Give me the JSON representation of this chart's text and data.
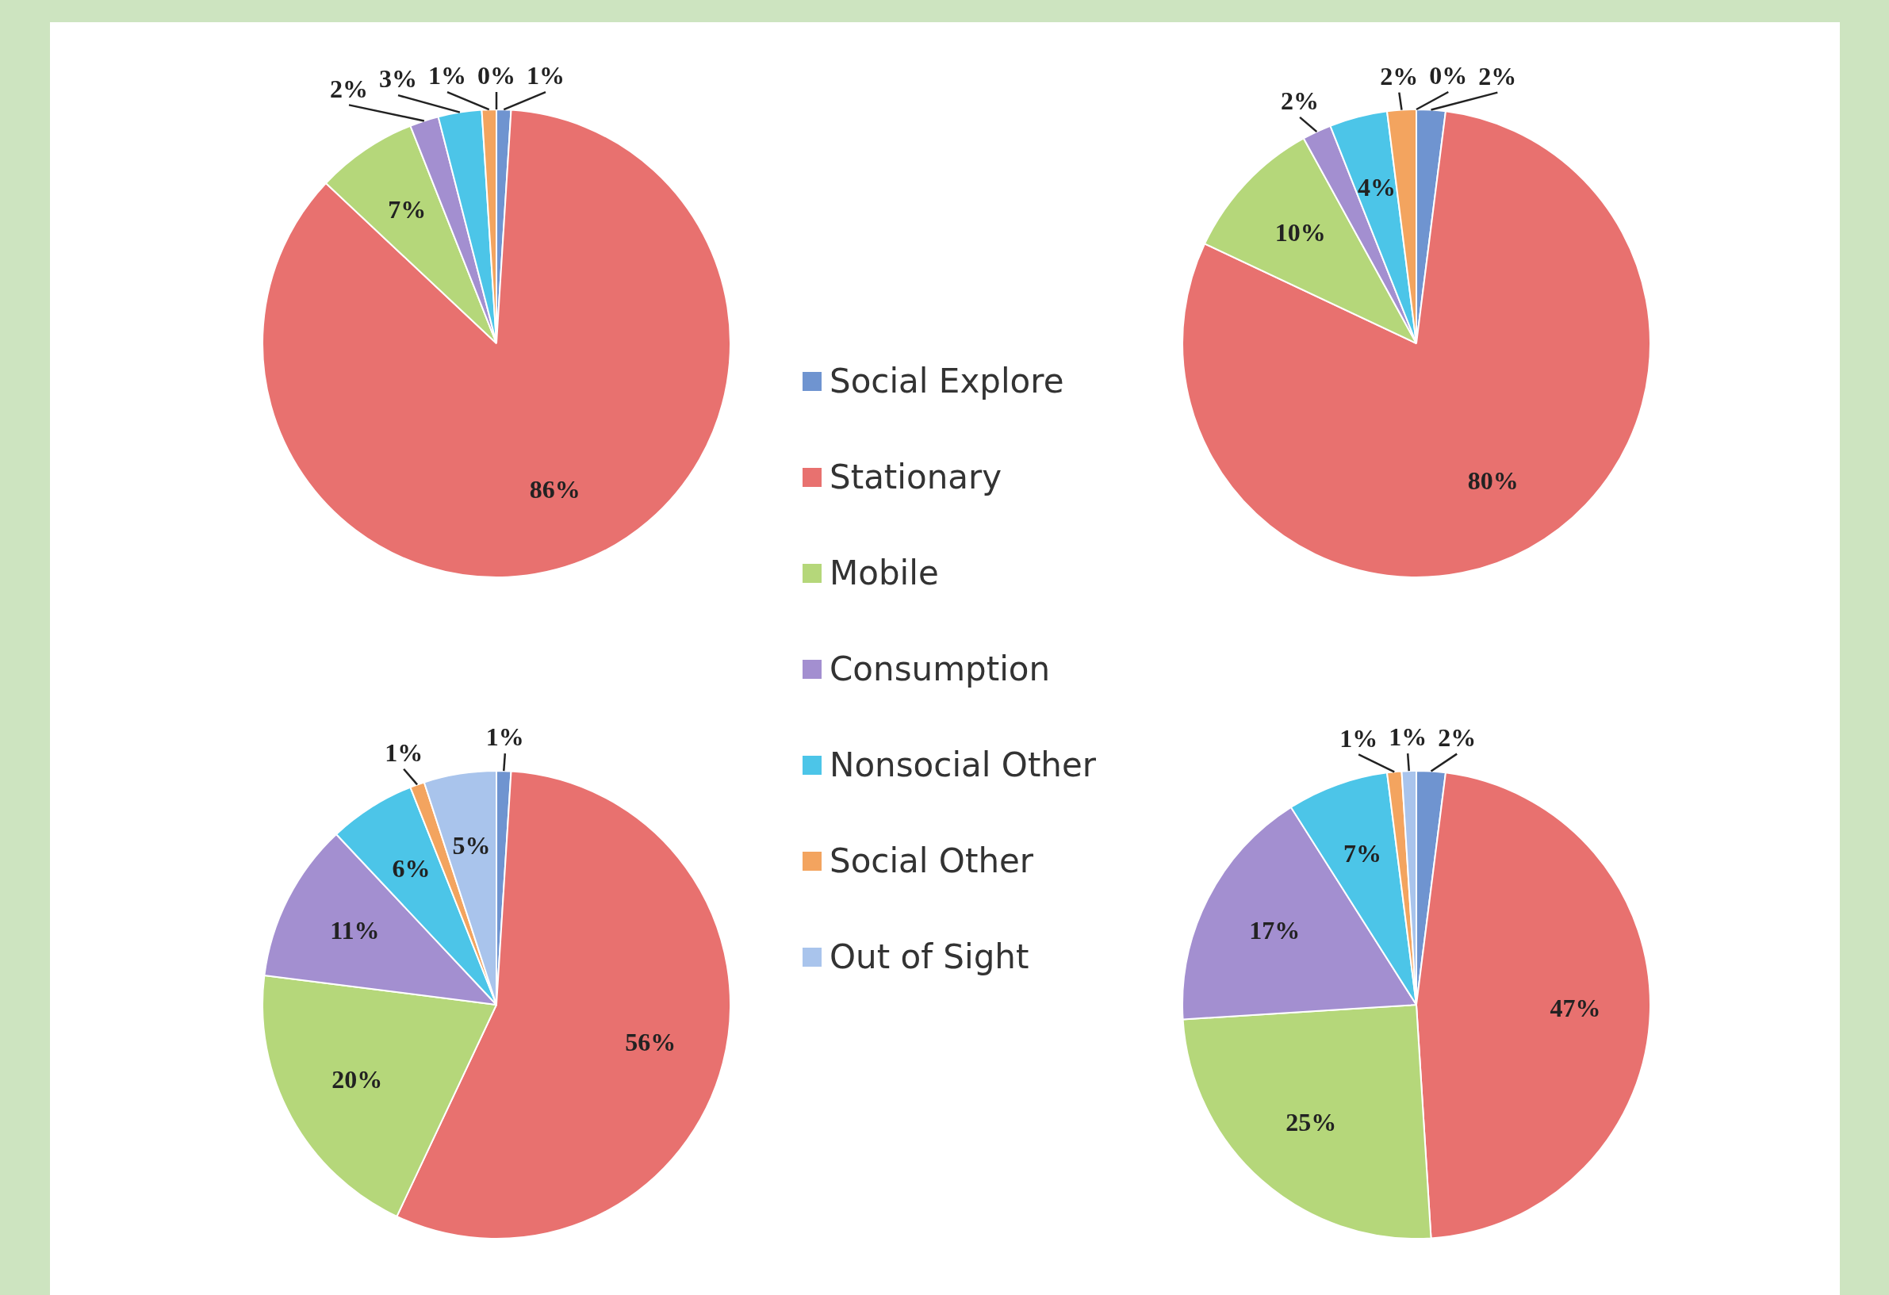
{
  "chart_data": [
    {
      "type": "pie",
      "categories": [
        "Social Explore",
        "Stationary",
        "Mobile",
        "Consumption",
        "Nonsocial Other",
        "Social Other",
        "Out of Sight"
      ],
      "values": [
        1,
        86,
        7,
        2,
        3,
        1,
        0
      ],
      "value_labels": [
        "1%",
        "86%",
        "7%",
        "2%",
        "3%",
        "1%",
        "0%"
      ],
      "colors": [
        "#6f94d0",
        "#e8716f",
        "#b5d77a",
        "#a38fd0",
        "#4cc5e8",
        "#f3a45f",
        "#a9c4ec"
      ],
      "legend": "right"
    },
    {
      "type": "pie",
      "categories": [
        null,
        null,
        null,
        null,
        null,
        null,
        null
      ],
      "values": [
        2,
        80,
        10,
        2,
        4,
        2,
        0
      ],
      "value_labels": [
        "2%",
        "80%",
        "10%",
        "2%",
        "4%",
        "2%",
        "0%"
      ],
      "colors": [
        "#6f94d0",
        "#e8716f",
        "#b5d77a",
        "#a38fd0",
        "#4cc5e8",
        "#f3a45f",
        "#a9c4ec"
      ]
    },
    {
      "type": "pie",
      "categories": [
        null,
        null,
        null,
        null,
        null,
        null,
        null
      ],
      "values": [
        1,
        56,
        20,
        11,
        6,
        1,
        5
      ],
      "value_labels": [
        "1%",
        "56%",
        "20%",
        "11%",
        "6%",
        "1%",
        "5%"
      ],
      "colors": [
        "#6f94d0",
        "#e8716f",
        "#b5d77a",
        "#a38fd0",
        "#4cc5e8",
        "#f3a45f",
        "#a9c4ec"
      ]
    },
    {
      "type": "pie",
      "categories": [
        null,
        null,
        null,
        null,
        null,
        null,
        null
      ],
      "values": [
        2,
        47,
        25,
        17,
        7,
        1,
        1
      ],
      "value_labels": [
        "2%",
        "47%",
        "25%",
        "17%",
        "7%",
        "1%",
        "1%"
      ],
      "colors": [
        "#6f94d0",
        "#e8716f",
        "#b5d77a",
        "#a38fd0",
        "#4cc5e8",
        "#f3a45f",
        "#a9c4ec"
      ]
    }
  ]
}
